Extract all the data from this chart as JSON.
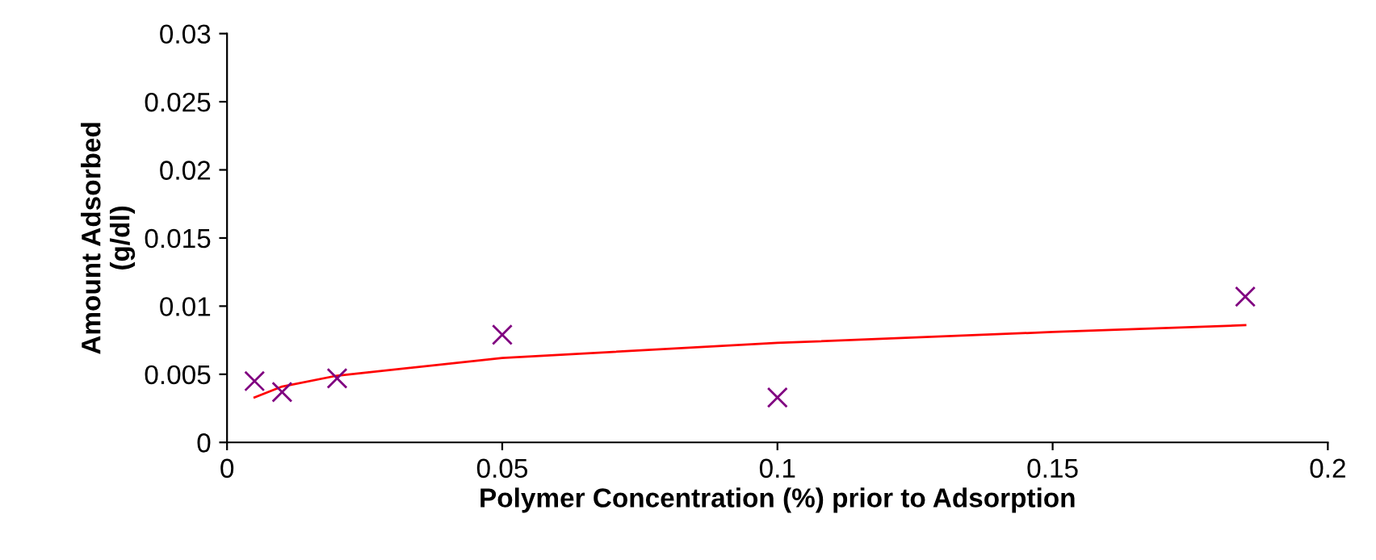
{
  "chart_data": {
    "type": "scatter",
    "xlabel": "Polymer Concentration (%) prior to Adsorption",
    "ylabel": "Amount Adsorbed\n(g/dl)",
    "xlim": [
      0,
      0.2
    ],
    "xticks": [
      0,
      0.05,
      0.1,
      0.15,
      0.2
    ],
    "ylim": [
      0,
      0.03
    ],
    "yticks": [
      0,
      0.005,
      0.01,
      0.015,
      0.02,
      0.025,
      0.03
    ],
    "grid": false,
    "series": [
      {
        "color": "#800080",
        "marker": "cross",
        "x": [
          0.005,
          0.01,
          0.02,
          0.05,
          0.1,
          0.185
        ],
        "values": [
          0.0045,
          0.0037,
          0.0047,
          0.0079,
          0.0033,
          0.0107
        ]
      },
      {
        "type": "line",
        "color": "#ff0000",
        "line_style": "solid",
        "x": [
          0.005,
          0.01,
          0.02,
          0.05,
          0.1,
          0.15,
          0.185
        ],
        "values": [
          0.0033,
          0.0041,
          0.0049,
          0.0062,
          0.0073,
          0.0081,
          0.0086
        ]
      }
    ]
  }
}
